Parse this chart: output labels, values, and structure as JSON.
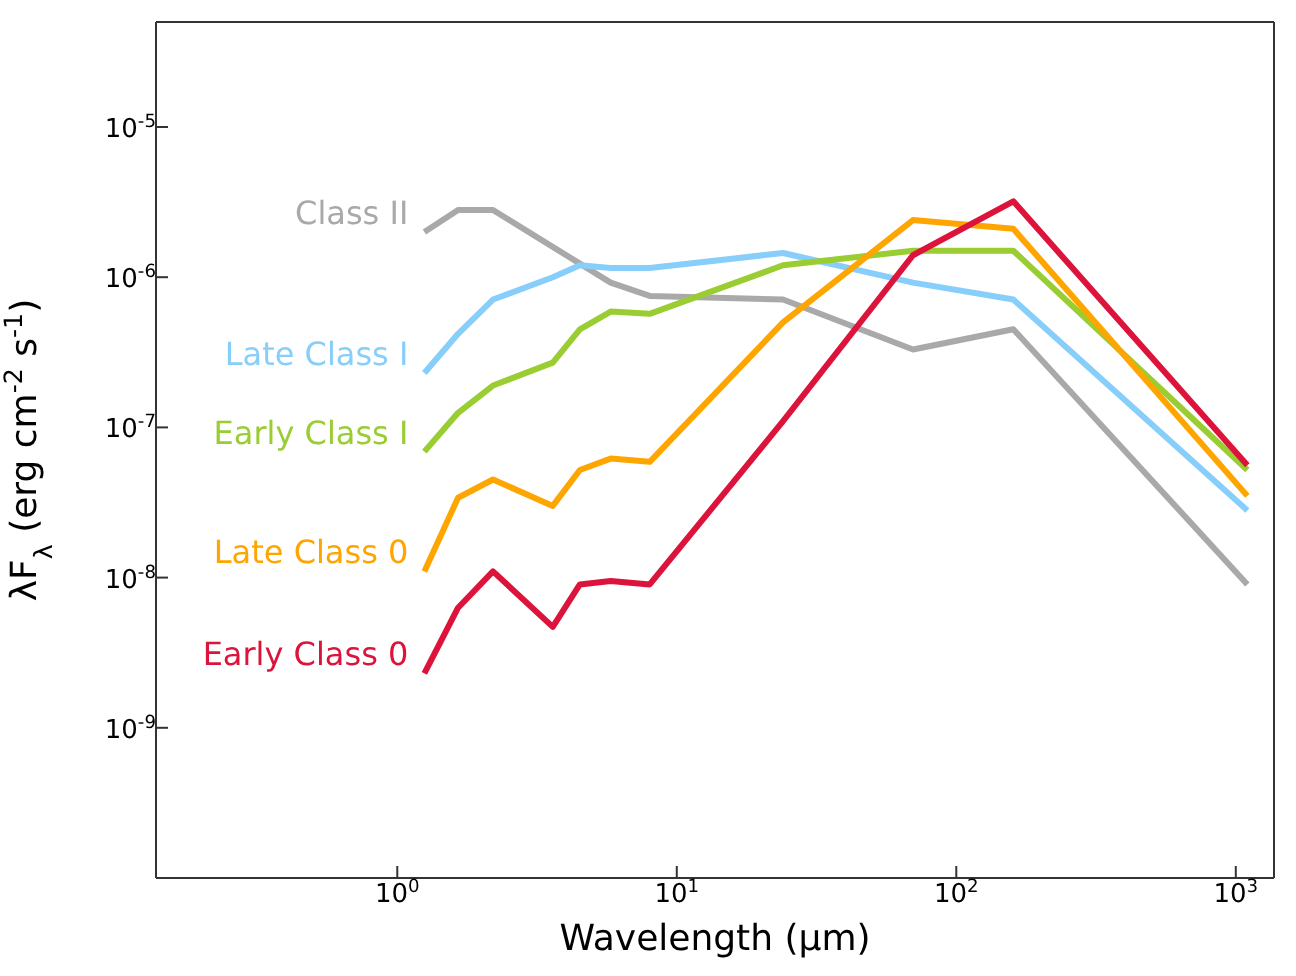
{
  "chart_data": {
    "type": "line",
    "xlabel": "Wavelength (μm)",
    "ylabel": "λF$_{λ}$ (erg cm$^{-2}$ s$^{-1}$)",
    "log": "xy",
    "xlim": [
      0.137,
      1370
    ],
    "ylim": [
      1e-10,
      5e-05
    ],
    "xticks": [
      {
        "value": 1,
        "label": "10$^{0}$"
      },
      {
        "value": 10,
        "label": "10$^{1}$"
      },
      {
        "value": 100,
        "label": "10$^{2}$"
      },
      {
        "value": 1000,
        "label": "10$^{3}$"
      }
    ],
    "yticks": [
      {
        "value": 1e-09,
        "label": "10$^{-9}$"
      },
      {
        "value": 1e-08,
        "label": "10$^{-8}$"
      },
      {
        "value": 1e-07,
        "label": "10$^{-7}$"
      },
      {
        "value": 1e-06,
        "label": "10$^{-6}$"
      },
      {
        "value": 1e-05,
        "label": "10$^{-5}$"
      }
    ],
    "x": [
      1.25,
      1.65,
      2.2,
      3.6,
      4.5,
      5.8,
      8,
      24,
      70,
      160,
      1100
    ],
    "series": [
      {
        "name": "Class II",
        "color": "#a9a9a9",
        "x": [
          1.25,
          1.65,
          2.2,
          5.8,
          8,
          24,
          70,
          160,
          1100
        ],
        "values": [
          2e-06,
          2.8e-06,
          2.8e-06,
          9.2e-07,
          7.5e-07,
          7.1e-07,
          3.3e-07,
          4.5e-07,
          9e-09
        ]
      },
      {
        "name": "Late Class I",
        "color": "#87cefa",
        "values": [
          2.3e-07,
          4.2e-07,
          7.1e-07,
          1e-06,
          1.2e-06,
          1.15e-06,
          1.15e-06,
          1.45e-06,
          9.2e-07,
          7.1e-07,
          2.8e-08
        ]
      },
      {
        "name": "Early Class I",
        "color": "#9acd32",
        "values": [
          6.9e-08,
          1.25e-07,
          1.9e-07,
          2.7e-07,
          4.5e-07,
          5.9e-07,
          5.7e-07,
          1.2e-06,
          1.5e-06,
          1.5e-06,
          5.2e-08
        ]
      },
      {
        "name": "Late Class 0",
        "color": "#ffa500",
        "values": [
          1.1e-08,
          3.4e-08,
          4.5e-08,
          3e-08,
          5.2e-08,
          6.2e-08,
          5.9e-08,
          5e-07,
          2.4e-06,
          2.1e-06,
          3.5e-08
        ]
      },
      {
        "name": "Early Class 0",
        "color": "#dc143c",
        "values": [
          2.3e-09,
          6.3e-09,
          1.1e-08,
          4.7e-09,
          9e-09,
          9.5e-09,
          9e-09,
          1.1e-07,
          1.4e-06,
          3.2e-06,
          5.6e-08
        ]
      }
    ]
  }
}
